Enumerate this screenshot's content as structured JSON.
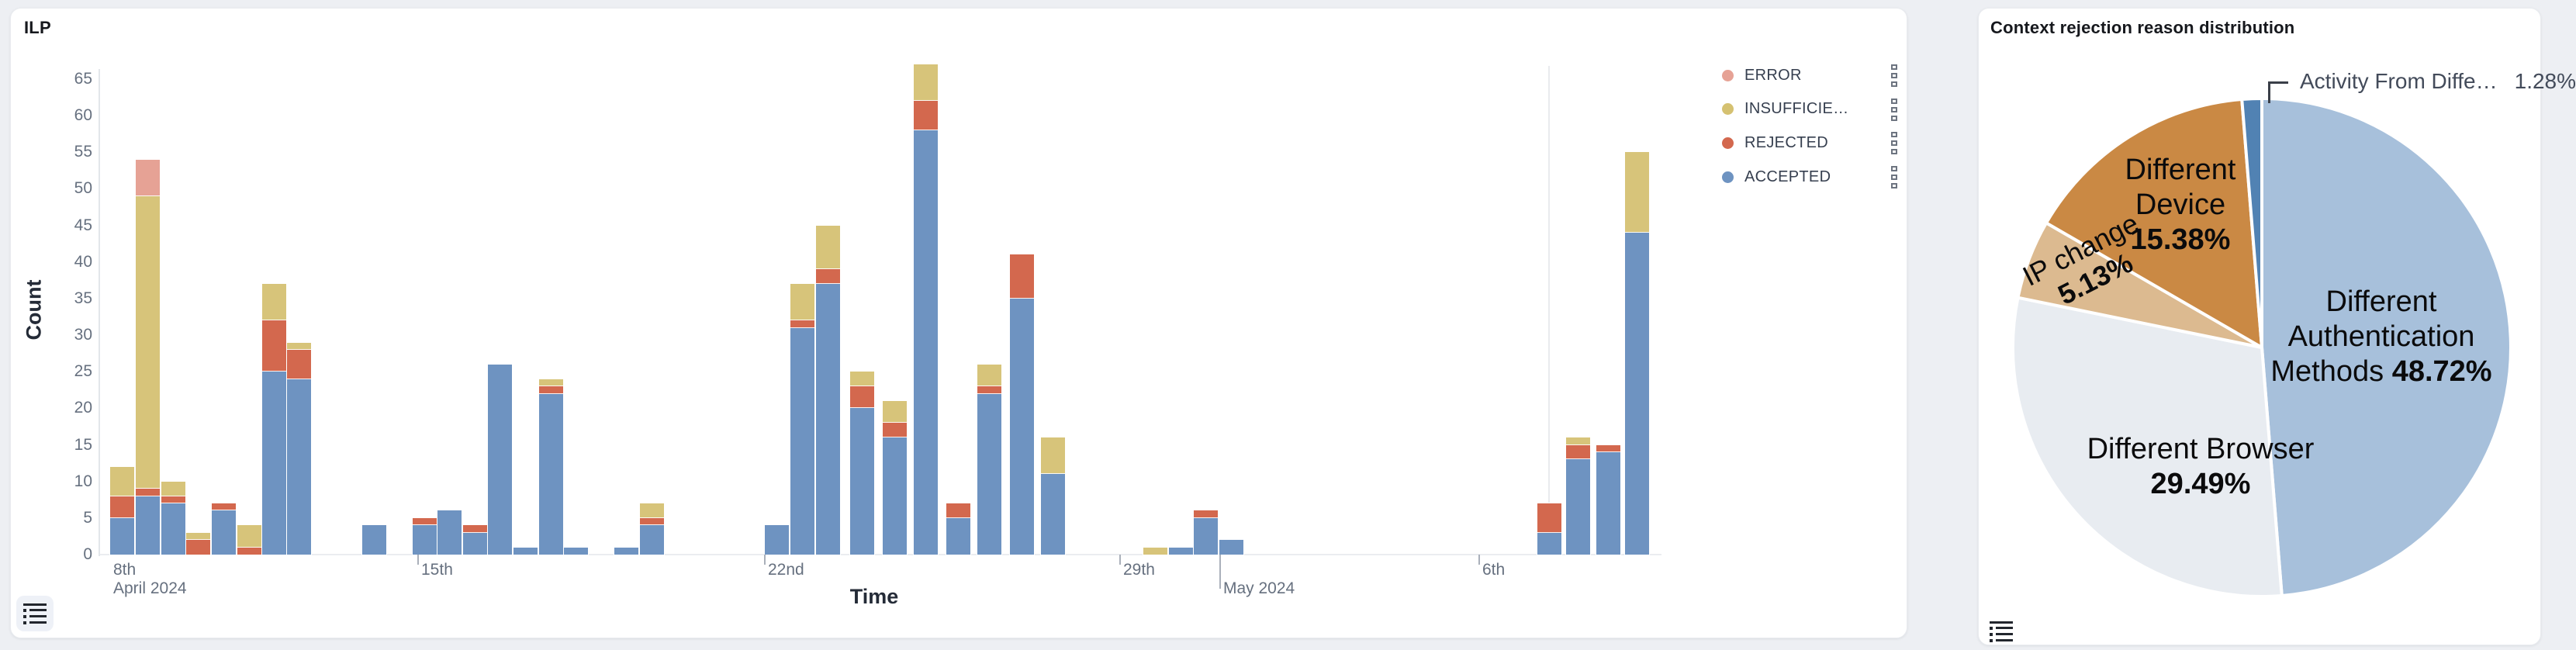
{
  "page": {
    "background": "#edeff3"
  },
  "left_panel": {
    "title": "ILP",
    "y_axis_label": "Count",
    "x_axis_label": "Time",
    "legend": [
      {
        "label": "ERROR",
        "color": "#e6a295"
      },
      {
        "label": "INSUFFICIE…",
        "color": "#d5c171"
      },
      {
        "label": "REJECTED",
        "color": "#d3684e"
      },
      {
        "label": "ACCEPTED",
        "color": "#6e93c1"
      }
    ],
    "corner_icon": "list-icon"
  },
  "right_panel": {
    "title": "Context rejection reason distribution",
    "corner_icon": "list-icon"
  },
  "chart_data": [
    {
      "type": "bar",
      "stacked": true,
      "title": "ILP",
      "xlabel": "Time",
      "ylabel": "Count",
      "ylim": [
        0,
        65
      ],
      "yticks": [
        0,
        5,
        10,
        15,
        20,
        25,
        30,
        35,
        40,
        45,
        50,
        55,
        60,
        65
      ],
      "grid": false,
      "legend_position": "right-top",
      "series_order": [
        "ACCEPTED",
        "REJECTED",
        "INSUFFICIENT",
        "ERROR"
      ],
      "colors": {
        "ACCEPTED": "#6e93c1",
        "REJECTED": "#d3684e",
        "INSUFFICIENT": "#d7c47a",
        "ERROR": "#e6a295"
      },
      "xticks": [
        {
          "x": 13,
          "label": "8th",
          "sub": "April 2024",
          "mark": "none"
        },
        {
          "x": 410,
          "label": "15th",
          "sub": "",
          "mark": "short"
        },
        {
          "x": 857,
          "label": "22nd",
          "sub": "",
          "mark": "short"
        },
        {
          "x": 1315,
          "label": "29th",
          "sub": "",
          "mark": "short"
        },
        {
          "x": 1444,
          "label": "",
          "sub": "May 2024",
          "mark": "long"
        },
        {
          "x": 1778,
          "label": "6th",
          "sub": "",
          "mark": "short"
        }
      ],
      "bars": [
        {
          "x": 13,
          "ACCEPTED": 5,
          "REJECTED": 3,
          "INSUFFICIENT": 4,
          "ERROR": 0
        },
        {
          "x": 46,
          "ACCEPTED": 8,
          "REJECTED": 1,
          "INSUFFICIENT": 40,
          "ERROR": 5
        },
        {
          "x": 79,
          "ACCEPTED": 7,
          "REJECTED": 1,
          "INSUFFICIENT": 2,
          "ERROR": 0
        },
        {
          "x": 111,
          "ACCEPTED": 0,
          "REJECTED": 2,
          "INSUFFICIENT": 1,
          "ERROR": 0
        },
        {
          "x": 144,
          "ACCEPTED": 6,
          "REJECTED": 1,
          "INSUFFICIENT": 0,
          "ERROR": 0
        },
        {
          "x": 177,
          "ACCEPTED": 0,
          "REJECTED": 1,
          "INSUFFICIENT": 3,
          "ERROR": 0
        },
        {
          "x": 209,
          "ACCEPTED": 25,
          "REJECTED": 7,
          "INSUFFICIENT": 5,
          "ERROR": 0
        },
        {
          "x": 241,
          "ACCEPTED": 24,
          "REJECTED": 4,
          "INSUFFICIENT": 1,
          "ERROR": 0
        },
        {
          "x": 338,
          "ACCEPTED": 4,
          "REJECTED": 0,
          "INSUFFICIENT": 0,
          "ERROR": 0
        },
        {
          "x": 403,
          "ACCEPTED": 4,
          "REJECTED": 1,
          "INSUFFICIENT": 0,
          "ERROR": 0
        },
        {
          "x": 435,
          "ACCEPTED": 6,
          "REJECTED": 0,
          "INSUFFICIENT": 0,
          "ERROR": 0
        },
        {
          "x": 468,
          "ACCEPTED": 3,
          "REJECTED": 1,
          "INSUFFICIENT": 0,
          "ERROR": 0
        },
        {
          "x": 500,
          "ACCEPTED": 26,
          "REJECTED": 0,
          "INSUFFICIENT": 0,
          "ERROR": 0
        },
        {
          "x": 533,
          "ACCEPTED": 1,
          "REJECTED": 0,
          "INSUFFICIENT": 0,
          "ERROR": 0
        },
        {
          "x": 566,
          "ACCEPTED": 22,
          "REJECTED": 1,
          "INSUFFICIENT": 1,
          "ERROR": 0
        },
        {
          "x": 598,
          "ACCEPTED": 1,
          "REJECTED": 0,
          "INSUFFICIENT": 0,
          "ERROR": 0
        },
        {
          "x": 663,
          "ACCEPTED": 1,
          "REJECTED": 0,
          "INSUFFICIENT": 0,
          "ERROR": 0
        },
        {
          "x": 696,
          "ACCEPTED": 4,
          "REJECTED": 1,
          "INSUFFICIENT": 2,
          "ERROR": 0
        },
        {
          "x": 857,
          "ACCEPTED": 4,
          "REJECTED": 0,
          "INSUFFICIENT": 0,
          "ERROR": 0
        },
        {
          "x": 890,
          "ACCEPTED": 31,
          "REJECTED": 1,
          "INSUFFICIENT": 5,
          "ERROR": 0
        },
        {
          "x": 923,
          "ACCEPTED": 37,
          "REJECTED": 2,
          "INSUFFICIENT": 6,
          "ERROR": 0
        },
        {
          "x": 967,
          "ACCEPTED": 20,
          "REJECTED": 3,
          "INSUFFICIENT": 2,
          "ERROR": 0
        },
        {
          "x": 1009,
          "ACCEPTED": 16,
          "REJECTED": 2,
          "INSUFFICIENT": 3,
          "ERROR": 0
        },
        {
          "x": 1049,
          "ACCEPTED": 58,
          "REJECTED": 4,
          "INSUFFICIENT": 5,
          "ERROR": 0
        },
        {
          "x": 1091,
          "ACCEPTED": 5,
          "REJECTED": 2,
          "INSUFFICIENT": 0,
          "ERROR": 0
        },
        {
          "x": 1131,
          "ACCEPTED": 22,
          "REJECTED": 1,
          "INSUFFICIENT": 3,
          "ERROR": 0
        },
        {
          "x": 1173,
          "ACCEPTED": 35,
          "REJECTED": 6,
          "INSUFFICIENT": 0,
          "ERROR": 0
        },
        {
          "x": 1213,
          "ACCEPTED": 11,
          "REJECTED": 0,
          "INSUFFICIENT": 5,
          "ERROR": 0
        },
        {
          "x": 1345,
          "ACCEPTED": 0,
          "REJECTED": 0,
          "INSUFFICIENT": 1,
          "ERROR": 0
        },
        {
          "x": 1378,
          "ACCEPTED": 1,
          "REJECTED": 0,
          "INSUFFICIENT": 0,
          "ERROR": 0
        },
        {
          "x": 1410,
          "ACCEPTED": 5,
          "REJECTED": 1,
          "INSUFFICIENT": 0,
          "ERROR": 0
        },
        {
          "x": 1443,
          "ACCEPTED": 2,
          "REJECTED": 0,
          "INSUFFICIENT": 0,
          "ERROR": 0
        },
        {
          "x": 1853,
          "ACCEPTED": 3,
          "REJECTED": 4,
          "INSUFFICIENT": 0,
          "ERROR": 0
        },
        {
          "x": 1890,
          "ACCEPTED": 13,
          "REJECTED": 2,
          "INSUFFICIENT": 1,
          "ERROR": 0
        },
        {
          "x": 1929,
          "ACCEPTED": 14,
          "REJECTED": 1,
          "INSUFFICIENT": 0,
          "ERROR": 0
        },
        {
          "x": 1966,
          "ACCEPTED": 44,
          "REJECTED": 0,
          "INSUFFICIENT": 11,
          "ERROR": 0
        }
      ]
    },
    {
      "type": "pie",
      "title": "Context rejection reason distribution",
      "start_angle": "12 o'clock",
      "direction": "clockwise",
      "slices": [
        {
          "label": "Different Authentication Methods",
          "label_lines": [
            "Different",
            "Authentication",
            "Methods"
          ],
          "pct": 48.72,
          "pct_text": "48.72%",
          "color": "#a7c0db"
        },
        {
          "label": "Different Browser",
          "label_lines": [
            "Different Browser"
          ],
          "pct": 29.49,
          "pct_text": "29.49%",
          "color": "#e8ecf1"
        },
        {
          "label": "IP change",
          "label_lines": [
            "IP change"
          ],
          "pct": 5.13,
          "pct_text": "5.13%",
          "color": "#dcba90"
        },
        {
          "label": "Different Device",
          "label_lines": [
            "Different",
            "Device"
          ],
          "pct": 15.38,
          "pct_text": "15.38%",
          "color": "#ca8944"
        },
        {
          "label": "Activity From Diffe…",
          "label_lines": [
            "Activity From Diffe…"
          ],
          "pct": 1.28,
          "pct_text": "1.28%",
          "color": "#5182b3",
          "callout": true
        }
      ]
    }
  ]
}
